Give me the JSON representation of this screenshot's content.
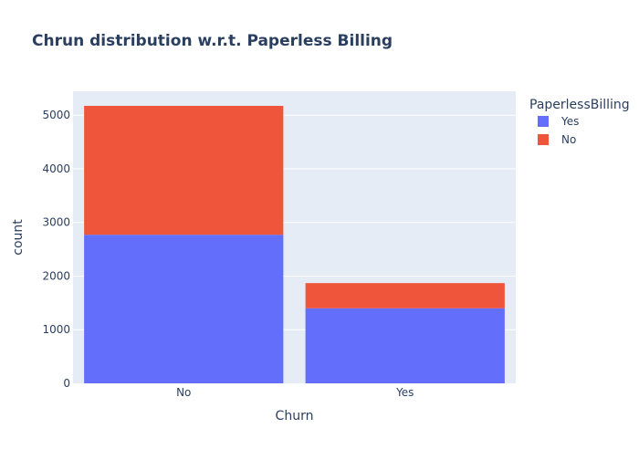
{
  "chart_data": {
    "type": "bar",
    "barmode": "stack",
    "title": "Chrun distribution w.r.t. Paperless Billing",
    "xlabel": "Churn",
    "ylabel": "count",
    "categories": [
      "No",
      "Yes"
    ],
    "series": [
      {
        "name": "Yes",
        "values": [
          2771,
          1400
        ],
        "color": "#636efa"
      },
      {
        "name": "No",
        "values": [
          2403,
          469
        ],
        "color": "#ef553b"
      }
    ],
    "ylim": [
      0,
      5446
    ],
    "yticks": [
      0,
      1000,
      2000,
      3000,
      4000,
      5000
    ],
    "ytick_labels": [
      "0",
      "1000",
      "2000",
      "3000",
      "4000",
      "5000"
    ],
    "legend": {
      "title": "PaperlessBilling",
      "placement": "top-right"
    },
    "grid": true,
    "colors": {
      "plot_bg": "#e5ecf6",
      "grid": "#ffffff",
      "text": "#2a3f5f"
    }
  }
}
